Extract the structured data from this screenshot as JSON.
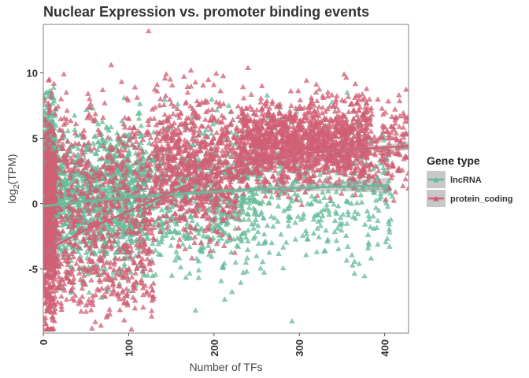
{
  "chart_data": {
    "type": "scatter",
    "title": "Nuclear Expression vs. promoter binding events",
    "xlabel": "Number of TFs",
    "ylabel_main": "log",
    "ylabel_sub": "2",
    "ylabel_rest": "(TPM)",
    "xlim": [
      0,
      428
    ],
    "ylim": [
      -9.9,
      13.7
    ],
    "xticks": [
      {
        "value": 0,
        "label": "0"
      },
      {
        "value": 100,
        "label": "100"
      },
      {
        "value": 200,
        "label": "200"
      },
      {
        "value": 300,
        "label": "300"
      },
      {
        "value": 400,
        "label": "400"
      }
    ],
    "yticks": [
      {
        "value": 10,
        "label": "10"
      },
      {
        "value": 5,
        "label": "5"
      },
      {
        "value": 0,
        "label": "0"
      },
      {
        "value": -5,
        "label": "-5"
      }
    ],
    "grid": false,
    "legend_position": "right",
    "legend_title": "Gene type",
    "marker": "triangle",
    "series": [
      {
        "name": "lncRNA",
        "color": "#66BB9A",
        "trend": [
          [
            0,
            -0.2
          ],
          [
            50,
            0.2
          ],
          [
            100,
            0.5
          ],
          [
            150,
            0.7
          ],
          [
            200,
            0.9
          ],
          [
            250,
            1.1
          ],
          [
            300,
            1.2
          ],
          [
            350,
            1.3
          ],
          [
            405,
            1.4
          ]
        ],
        "trend_band": [
          0.1,
          0.15,
          0.15,
          0.15,
          0.15,
          0.2,
          0.25,
          0.35,
          0.6
        ],
        "clusters": [
          {
            "x_min": 0,
            "x_max": 15,
            "y_mean": 1.5,
            "y_sd": 2.6,
            "n": 1100
          },
          {
            "x_min": 0,
            "x_max": 120,
            "y_mean": 0.5,
            "y_sd": 2.6,
            "n": 1200
          },
          {
            "x_min": 120,
            "x_max": 260,
            "y_mean": 0.6,
            "y_sd": 2.7,
            "n": 650
          },
          {
            "x_min": 260,
            "x_max": 410,
            "y_mean": 1.1,
            "y_sd": 2.6,
            "n": 350
          }
        ]
      },
      {
        "name": "protein_coding",
        "color": "#D05F74",
        "trend": [
          [
            0,
            -3.7
          ],
          [
            50,
            -2.0
          ],
          [
            100,
            -0.6
          ],
          [
            150,
            0.9
          ],
          [
            200,
            2.3
          ],
          [
            250,
            3.2
          ],
          [
            300,
            3.8
          ],
          [
            350,
            4.1
          ],
          [
            400,
            4.3
          ],
          [
            428,
            4.4
          ]
        ],
        "trend_band": [
          0.15,
          0.1,
          0.08,
          0.08,
          0.08,
          0.08,
          0.1,
          0.12,
          0.2,
          0.35
        ],
        "clusters": [
          {
            "x_min": 0,
            "x_max": 15,
            "y_mean": -1.5,
            "y_sd": 4.2,
            "n": 500
          },
          {
            "x_min": 0,
            "x_max": 130,
            "y_mean": 1.0,
            "y_sd": 3.3,
            "n": 650
          },
          {
            "x_min": 130,
            "x_max": 230,
            "y_mean": 3.0,
            "y_sd": 2.6,
            "n": 800
          },
          {
            "x_min": 230,
            "x_max": 380,
            "y_mean": 4.6,
            "y_sd": 1.6,
            "n": 1500
          },
          {
            "x_min": 380,
            "x_max": 428,
            "y_mean": 4.6,
            "y_sd": 1.9,
            "n": 160
          },
          {
            "x_min": 0,
            "x_max": 130,
            "y_mean": -5.5,
            "y_sd": 1.6,
            "n": 280
          }
        ]
      }
    ]
  }
}
